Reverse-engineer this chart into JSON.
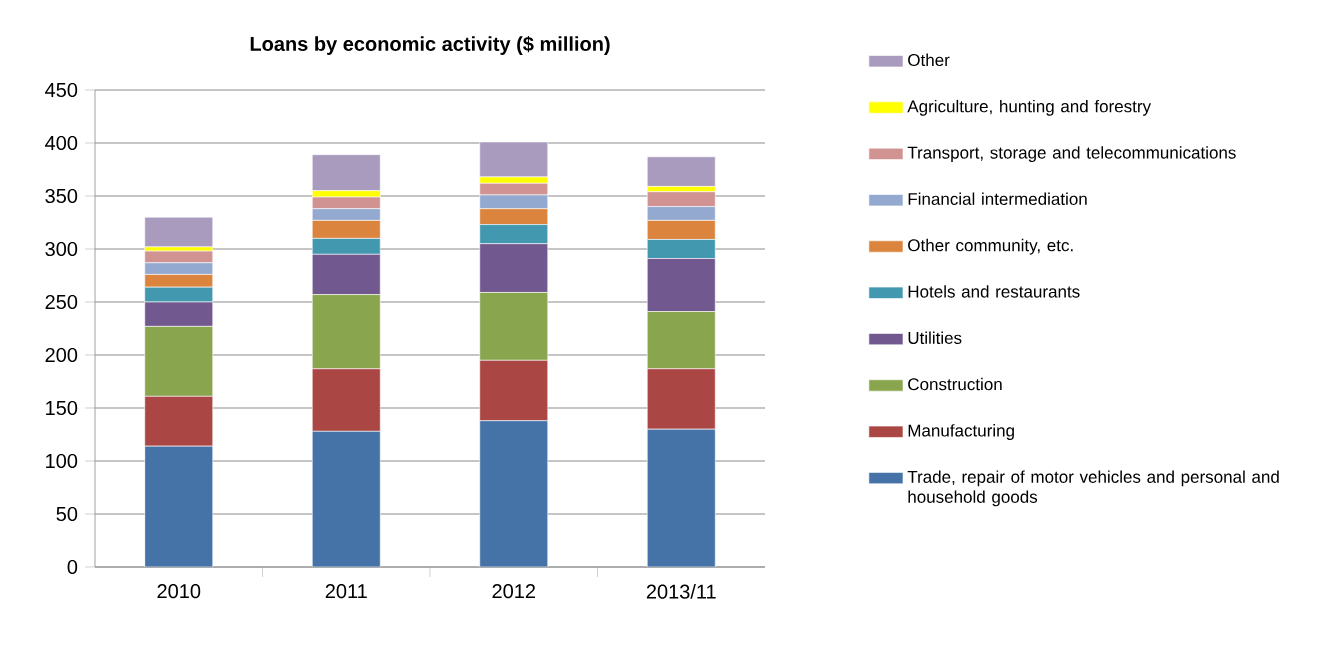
{
  "chart_data": {
    "type": "bar",
    "stacked": true,
    "title": "Loans by economic activity ($ million)",
    "categories": [
      "2010",
      "2011",
      "2012",
      "2013/11"
    ],
    "series": [
      {
        "name": "Trade, repair of motor vehicles and personal and household goods",
        "color": "#4572a7",
        "values": [
          114,
          128,
          138,
          130
        ]
      },
      {
        "name": "Manufacturing",
        "color": "#aa4643",
        "values": [
          47,
          59,
          57,
          57
        ]
      },
      {
        "name": "Construction",
        "color": "#89a54e",
        "values": [
          66,
          70,
          64,
          54
        ]
      },
      {
        "name": "Utilities",
        "color": "#71588f",
        "values": [
          23,
          38,
          46,
          50
        ]
      },
      {
        "name": "Hotels and restaurants",
        "color": "#4198af",
        "values": [
          14,
          15,
          18,
          18
        ]
      },
      {
        "name": "Other community, etc.",
        "color": "#db843d",
        "values": [
          12,
          17,
          15,
          18
        ]
      },
      {
        "name": "Financial intermediation",
        "color": "#93a9cf",
        "values": [
          11,
          11,
          13,
          13
        ]
      },
      {
        "name": "Transport, storage and telecommunications",
        "color": "#d19392",
        "values": [
          11,
          11,
          11,
          14
        ]
      },
      {
        "name": "Agriculture, hunting and forestry",
        "color": "#ffff00",
        "values": [
          4,
          6,
          6,
          5
        ]
      },
      {
        "name": "Other",
        "color": "#a99bbd",
        "values": [
          28,
          34,
          33,
          28
        ]
      }
    ],
    "ylim": [
      0,
      450
    ],
    "yticks": [
      0,
      50,
      100,
      150,
      200,
      250,
      300,
      350,
      400,
      450
    ],
    "grid": "y",
    "legend": "right"
  }
}
